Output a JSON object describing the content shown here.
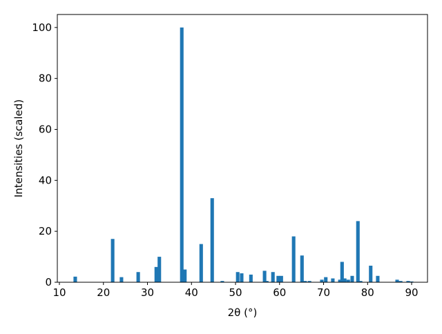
{
  "chart_data": {
    "type": "bar",
    "xlabel": "2θ (°)",
    "ylabel": "Intensities (scaled)",
    "color": "#1f77b4",
    "x": [
      13.6,
      22.1,
      24.1,
      27.9,
      32.0,
      32.7,
      37.8,
      38.5,
      42.2,
      44.7,
      47.0,
      50.5,
      51.4,
      53.5,
      56.6,
      57.1,
      58.5,
      59.7,
      60.4,
      63.2,
      65.1,
      65.8,
      66.8,
      69.6,
      70.5,
      72.1,
      73.7,
      74.2,
      74.8,
      75.6,
      76.5,
      77.8,
      78.4,
      80.7,
      82.3,
      86.7,
      87.5,
      89.2,
      90.0
    ],
    "values": [
      2.2,
      17,
      2,
      4,
      6,
      10,
      100,
      5,
      15,
      33,
      0.5,
      4,
      3.5,
      3,
      4.5,
      0.5,
      4,
      2.5,
      2.5,
      18,
      10.5,
      0.5,
      0.5,
      1,
      2,
      1.5,
      1,
      8,
      1.5,
      1,
      2.5,
      24,
      0.5,
      6.5,
      2.5,
      1,
      0.5,
      0.5,
      0.3
    ],
    "xlim": [
      9.53,
      93.6
    ],
    "ylim": [
      0,
      105.1
    ],
    "xticks": [
      10,
      20,
      30,
      40,
      50,
      60,
      70,
      80,
      90
    ],
    "yticks": [
      0,
      20,
      40,
      60,
      80,
      100
    ]
  }
}
